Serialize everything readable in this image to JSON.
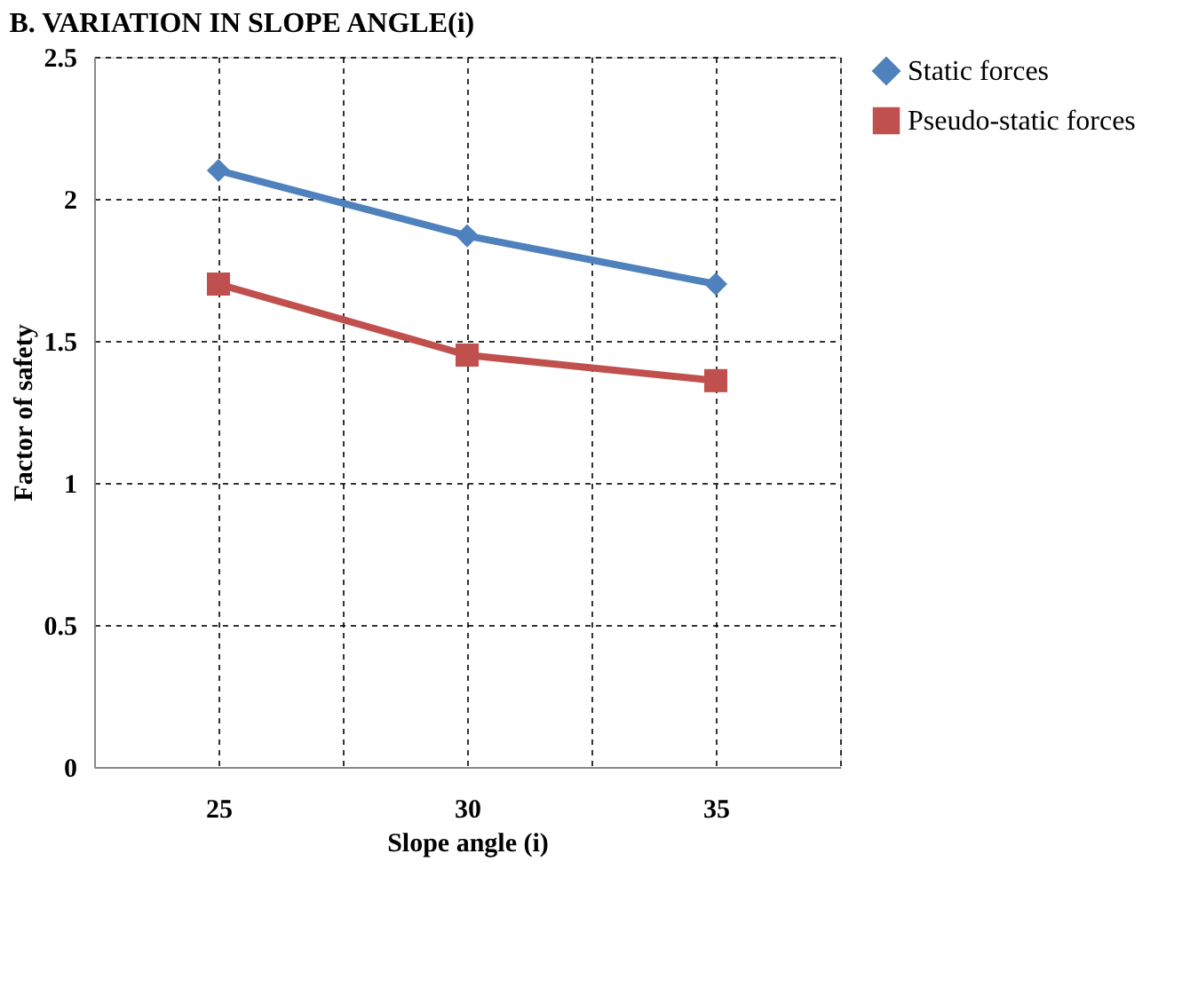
{
  "chart_data": {
    "type": "line",
    "title": "B. VARIATION IN SLOPE ANGLE(i)",
    "xlabel": "Slope angle (i)",
    "ylabel": "Factor of safety",
    "x": [
      25,
      30,
      35
    ],
    "series": [
      {
        "name": "Static forces",
        "color": "#4f81bd",
        "marker": "diamond",
        "values": [
          2.1,
          1.87,
          1.7
        ]
      },
      {
        "name": "Pseudo-static forces",
        "color": "#c0504d",
        "marker": "square",
        "values": [
          1.7,
          1.45,
          1.36
        ]
      }
    ],
    "xlim": [
      22.5,
      37.5
    ],
    "xticks": [
      {
        "value": 22.5,
        "label": null
      },
      25,
      {
        "value": 27.5,
        "label": null
      },
      30,
      {
        "value": 32.5,
        "label": null
      },
      35,
      {
        "value": 37.5,
        "label": null
      }
    ],
    "ylim": [
      0,
      2.5
    ],
    "yticks": [
      0,
      0.5,
      1,
      1.5,
      2,
      2.5
    ],
    "grid": true,
    "legend": "right",
    "line_style": "solid"
  }
}
